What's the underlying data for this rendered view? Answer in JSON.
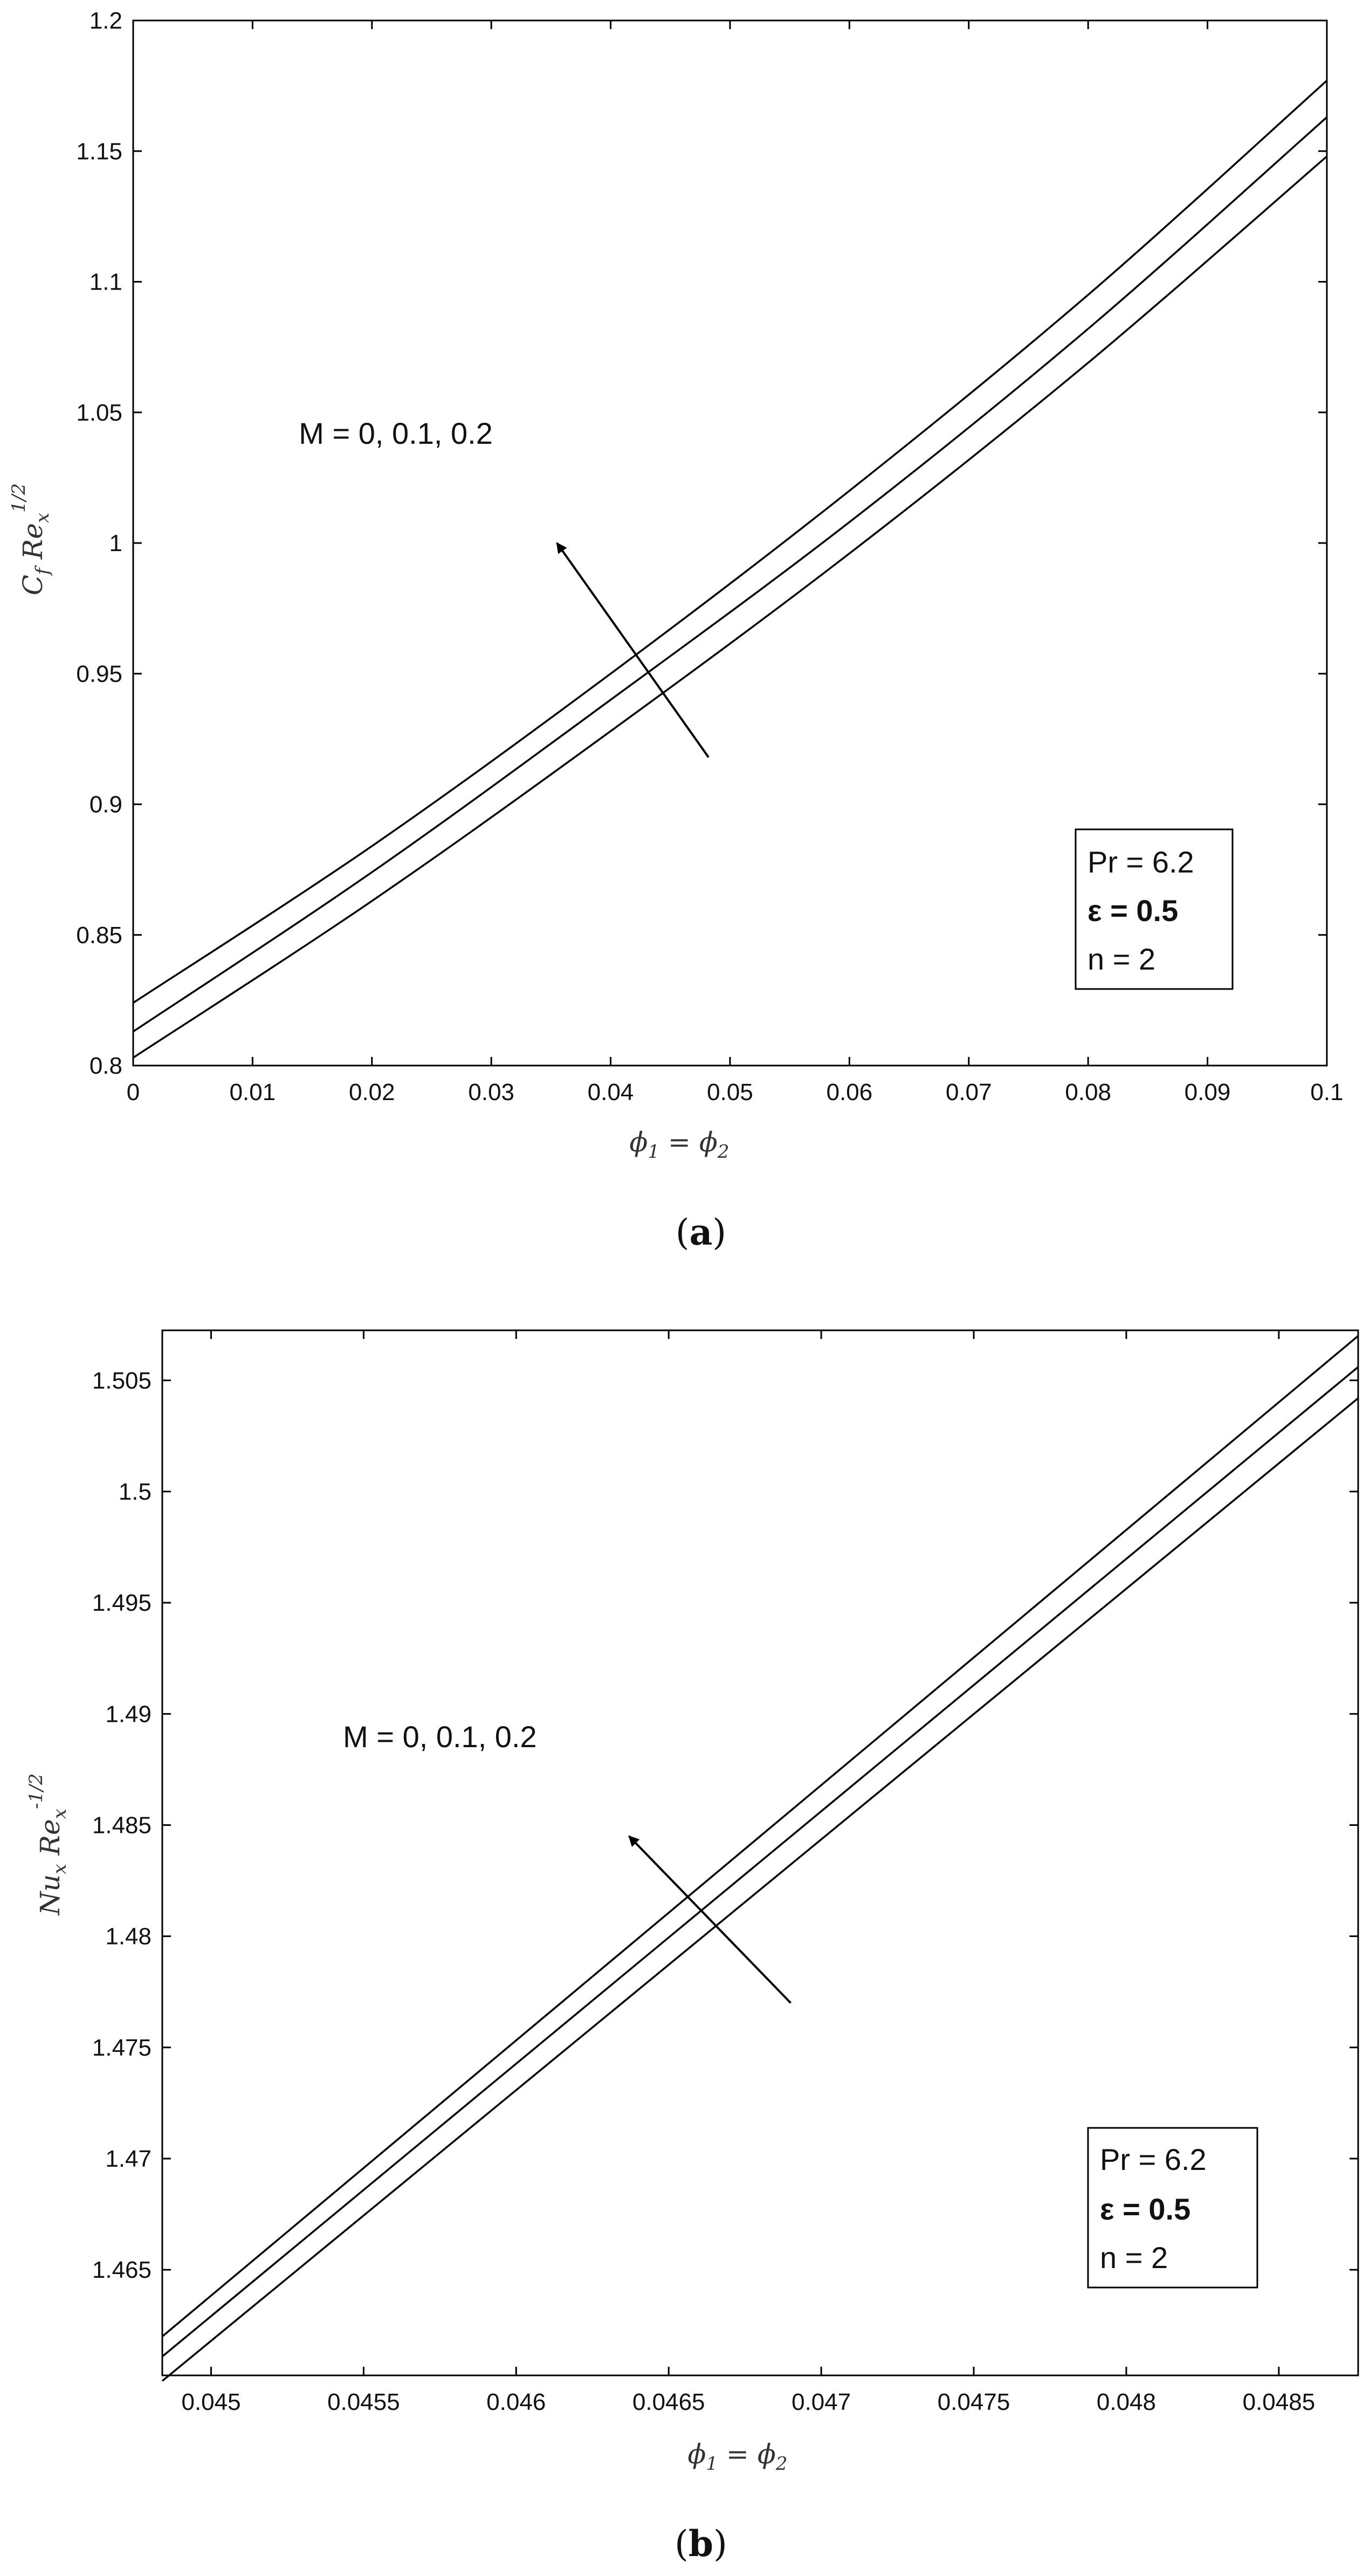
{
  "chart_data": [
    {
      "type": "line",
      "caption_open": "(",
      "caption_letter": "a",
      "caption_close": ")",
      "xlabel_parts": [
        "ϕ",
        "1",
        " = ϕ",
        "2"
      ],
      "ylabel_parts": [
        "C",
        "f",
        " Re",
        "x",
        "1/2"
      ],
      "xlim": [
        0,
        0.1
      ],
      "ylim": [
        0.8,
        1.2
      ],
      "x_ticks": [
        0,
        0.01,
        0.02,
        0.03,
        0.04,
        0.05,
        0.06,
        0.07,
        0.08,
        0.09,
        0.1
      ],
      "x_tick_labels": [
        "0",
        "0.01",
        "0.02",
        "0.03",
        "0.04",
        "0.05",
        "0.06",
        "0.07",
        "0.08",
        "0.09",
        "0.1"
      ],
      "y_ticks": [
        0.8,
        0.85,
        0.9,
        0.95,
        1.0,
        1.05,
        1.1,
        1.15,
        1.2
      ],
      "y_tick_labels": [
        "0.8",
        "0.85",
        "0.9",
        "0.95",
        "1",
        "1.05",
        "1.1",
        "1.15",
        "1.2"
      ],
      "grid": false,
      "x": [
        0,
        0.02,
        0.04,
        0.06,
        0.08,
        0.1
      ],
      "series": [
        {
          "values": [
            0.824,
            0.884,
            0.95,
            1.02,
            1.095,
            1.177
          ]
        },
        {
          "values": [
            0.813,
            0.874,
            0.94,
            1.008,
            1.082,
            1.163
          ]
        },
        {
          "values": [
            0.803,
            0.863,
            0.928,
            0.996,
            1.069,
            1.148
          ]
        }
      ],
      "annotation": {
        "text": "M = 0, 0.1, 0.2",
        "text_at": [
          0.022,
          1.038
        ],
        "arrow_from": [
          0.0482,
          0.918
        ],
        "arrow_to": [
          0.0355,
          1.0
        ]
      },
      "legend": {
        "position": "bottom-right",
        "lines": [
          {
            "text": "Pr = 6.2",
            "bold": false
          },
          {
            "text": "ε = 0.5",
            "bold": true
          },
          {
            "text": "n = 2",
            "bold": false
          }
        ]
      }
    },
    {
      "type": "line",
      "caption_open": "(",
      "caption_letter": "b",
      "caption_close": ")",
      "xlabel_parts": [
        "ϕ",
        "1",
        " = ϕ",
        "2"
      ],
      "ylabel_parts": [
        "Nu",
        "x",
        " Re",
        "x",
        "-1/2"
      ],
      "xlim": [
        0.04484,
        0.04876
      ],
      "ylim": [
        1.46025,
        1.50725
      ],
      "x_ticks": [
        0.045,
        0.0455,
        0.046,
        0.0465,
        0.047,
        0.0475,
        0.048,
        0.0485
      ],
      "x_tick_labels": [
        "0.045",
        "0.0455",
        "0.046",
        "0.0465",
        "0.047",
        "0.0475",
        "0.048",
        "0.0485"
      ],
      "y_ticks": [
        1.465,
        1.47,
        1.475,
        1.48,
        1.485,
        1.49,
        1.495,
        1.5,
        1.505
      ],
      "y_tick_labels": [
        "1.465",
        "1.47",
        "1.475",
        "1.48",
        "1.485",
        "1.49",
        "1.495",
        "1.5",
        "1.505"
      ],
      "grid": false,
      "x": [
        0.04484,
        0.04876
      ],
      "series": [
        {
          "values": [
            1.462,
            1.507
          ]
        },
        {
          "values": [
            1.4611,
            1.5056
          ]
        },
        {
          "values": [
            1.46,
            1.5042
          ]
        }
      ],
      "annotation": {
        "text": "M = 0, 0.1, 0.2",
        "text_at": [
          0.04575,
          1.4885
        ],
        "arrow_from": [
          0.0469,
          1.477
        ],
        "arrow_to": [
          0.04637,
          1.4845
        ]
      },
      "legend": {
        "position": "bottom-right",
        "lines": [
          {
            "text": "Pr = 6.2",
            "bold": false
          },
          {
            "text": "ε = 0.5",
            "bold": true
          },
          {
            "text": "n = 2",
            "bold": false
          }
        ]
      }
    }
  ]
}
